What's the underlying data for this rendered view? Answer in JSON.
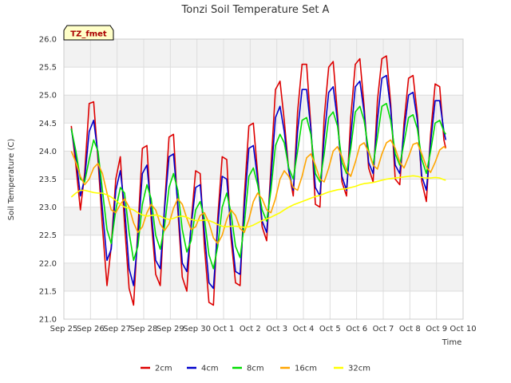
{
  "chart_data": {
    "type": "line",
    "title": "Tonzi Soil Temperature Set A",
    "xlabel": "Time",
    "ylabel": "Soil Temperature (C)",
    "badge": "TZ_fmet",
    "ylim": [
      21.0,
      26.0
    ],
    "yticks": [
      "21.0",
      "21.5",
      "22.0",
      "22.5",
      "23.0",
      "23.5",
      "24.0",
      "24.5",
      "25.0",
      "25.5",
      "26.0"
    ],
    "xlim": [
      0,
      15
    ],
    "xticks": [
      "Sep 25",
      "Sep 26",
      "Sep 27",
      "Sep 28",
      "Sep 29",
      "Sep 30",
      "Oct 1",
      "Oct 2",
      "Oct 3",
      "Oct 4",
      "Oct 5",
      "Oct 6",
      "Oct 7",
      "Oct 8",
      "Oct 9",
      "Oct 10"
    ],
    "x_units": "days since Sep 25 00:00",
    "grid": true,
    "legend_position": "bottom",
    "series": [
      {
        "name": "2cm",
        "color": "#dd0000",
        "x": [
          0.28,
          0.45,
          0.62,
          0.78,
          0.95,
          1.12,
          1.28,
          1.45,
          1.62,
          1.78,
          1.95,
          2.12,
          2.28,
          2.45,
          2.62,
          2.78,
          2.95,
          3.12,
          3.28,
          3.45,
          3.62,
          3.78,
          3.95,
          4.12,
          4.28,
          4.45,
          4.62,
          4.78,
          4.95,
          5.12,
          5.28,
          5.45,
          5.62,
          5.78,
          5.95,
          6.12,
          6.28,
          6.45,
          6.62,
          6.78,
          6.95,
          7.12,
          7.28,
          7.45,
          7.62,
          7.78,
          7.95,
          8.12,
          8.28,
          8.45,
          8.62,
          8.78,
          8.95,
          9.12,
          9.28,
          9.45,
          9.62,
          9.78,
          9.95,
          10.12,
          10.28,
          10.45,
          10.62,
          10.78,
          10.95,
          11.12,
          11.28,
          11.45,
          11.62,
          11.78,
          11.95,
          12.12,
          12.28,
          12.45,
          12.62,
          12.78,
          12.95,
          13.12,
          13.28,
          13.45,
          13.62,
          13.78,
          13.95,
          14.12,
          14.28,
          14.35
        ],
        "values": [
          24.45,
          23.75,
          22.95,
          23.6,
          24.85,
          24.88,
          23.85,
          22.65,
          21.6,
          22.3,
          23.5,
          23.9,
          22.7,
          21.55,
          21.25,
          22.6,
          24.05,
          24.1,
          22.8,
          21.8,
          21.6,
          23.0,
          24.25,
          24.3,
          22.95,
          21.75,
          21.5,
          22.7,
          23.65,
          23.6,
          22.3,
          21.3,
          21.25,
          22.8,
          23.9,
          23.85,
          22.45,
          21.65,
          21.6,
          23.2,
          24.45,
          24.5,
          23.6,
          22.65,
          22.4,
          23.7,
          25.1,
          25.25,
          24.55,
          23.65,
          23.2,
          24.7,
          25.55,
          25.55,
          24.45,
          23.05,
          23.0,
          24.6,
          25.5,
          25.6,
          24.65,
          23.45,
          23.2,
          24.6,
          25.55,
          25.65,
          24.8,
          23.7,
          23.45,
          24.9,
          25.65,
          25.7,
          24.85,
          23.5,
          23.4,
          24.5,
          25.3,
          25.35,
          24.65,
          23.45,
          23.1,
          24.3,
          25.2,
          25.15,
          24.2,
          24.05
        ]
      },
      {
        "name": "4cm",
        "color": "#0000cc",
        "x": [
          0.28,
          0.45,
          0.62,
          0.78,
          0.95,
          1.12,
          1.28,
          1.45,
          1.62,
          1.78,
          1.95,
          2.12,
          2.28,
          2.45,
          2.62,
          2.78,
          2.95,
          3.12,
          3.28,
          3.45,
          3.62,
          3.78,
          3.95,
          4.12,
          4.28,
          4.45,
          4.62,
          4.78,
          4.95,
          5.12,
          5.28,
          5.45,
          5.62,
          5.78,
          5.95,
          6.12,
          6.28,
          6.45,
          6.62,
          6.78,
          6.95,
          7.12,
          7.28,
          7.45,
          7.62,
          7.78,
          7.95,
          8.12,
          8.28,
          8.45,
          8.62,
          8.78,
          8.95,
          9.12,
          9.28,
          9.45,
          9.62,
          9.78,
          9.95,
          10.12,
          10.28,
          10.45,
          10.62,
          10.78,
          10.95,
          11.12,
          11.28,
          11.45,
          11.62,
          11.78,
          11.95,
          12.12,
          12.28,
          12.45,
          12.62,
          12.78,
          12.95,
          13.12,
          13.28,
          13.45,
          13.62,
          13.78,
          13.95,
          14.12,
          14.28,
          14.35
        ],
        "values": [
          24.4,
          23.9,
          23.2,
          23.5,
          24.35,
          24.55,
          23.95,
          22.95,
          22.05,
          22.25,
          23.3,
          23.65,
          23.0,
          21.9,
          21.6,
          22.45,
          23.6,
          23.75,
          22.95,
          22.05,
          21.9,
          22.95,
          23.9,
          23.95,
          23.05,
          22.0,
          21.85,
          22.65,
          23.35,
          23.4,
          22.55,
          21.65,
          21.55,
          22.65,
          23.55,
          23.5,
          22.6,
          21.85,
          21.8,
          23.0,
          24.05,
          24.1,
          23.5,
          22.75,
          22.55,
          23.5,
          24.6,
          24.8,
          24.35,
          23.65,
          23.3,
          24.35,
          25.1,
          25.1,
          24.4,
          23.35,
          23.2,
          24.25,
          25.05,
          25.15,
          24.55,
          23.55,
          23.3,
          24.25,
          25.15,
          25.25,
          24.7,
          23.8,
          23.6,
          24.55,
          25.3,
          25.35,
          24.75,
          23.75,
          23.6,
          24.35,
          25.0,
          25.05,
          24.55,
          23.55,
          23.3,
          24.15,
          24.9,
          24.9,
          24.35,
          24.2
        ]
      },
      {
        "name": "8cm",
        "color": "#00dd00",
        "x": [
          0.28,
          0.45,
          0.62,
          0.78,
          0.95,
          1.12,
          1.28,
          1.45,
          1.62,
          1.78,
          1.95,
          2.12,
          2.28,
          2.45,
          2.62,
          2.78,
          2.95,
          3.12,
          3.28,
          3.45,
          3.62,
          3.78,
          3.95,
          4.12,
          4.28,
          4.45,
          4.62,
          4.78,
          4.95,
          5.12,
          5.28,
          5.45,
          5.62,
          5.78,
          5.95,
          6.12,
          6.28,
          6.45,
          6.62,
          6.78,
          6.95,
          7.12,
          7.28,
          7.45,
          7.62,
          7.78,
          7.95,
          8.12,
          8.28,
          8.45,
          8.62,
          8.78,
          8.95,
          9.12,
          9.28,
          9.45,
          9.62,
          9.78,
          9.95,
          10.12,
          10.28,
          10.45,
          10.62,
          10.78,
          10.95,
          11.12,
          11.28,
          11.45,
          11.62,
          11.78,
          11.95,
          12.12,
          12.28,
          12.45,
          12.62,
          12.78,
          12.95,
          13.12,
          13.28,
          13.45,
          13.62,
          13.78,
          13.95,
          14.12,
          14.28,
          14.35
        ],
        "values": [
          24.4,
          24.0,
          23.5,
          23.45,
          23.85,
          24.2,
          24.0,
          23.3,
          22.6,
          22.35,
          22.95,
          23.35,
          23.25,
          22.55,
          22.05,
          22.3,
          23.05,
          23.4,
          23.15,
          22.5,
          22.25,
          22.65,
          23.35,
          23.6,
          23.3,
          22.6,
          22.2,
          22.4,
          22.95,
          23.1,
          22.8,
          22.15,
          21.9,
          22.3,
          23.0,
          23.25,
          22.9,
          22.3,
          22.1,
          22.7,
          23.55,
          23.7,
          23.4,
          22.95,
          22.75,
          23.3,
          24.1,
          24.3,
          24.15,
          23.7,
          23.5,
          24.0,
          24.55,
          24.6,
          24.3,
          23.6,
          23.45,
          23.95,
          24.6,
          24.7,
          24.45,
          23.8,
          23.6,
          24.05,
          24.7,
          24.8,
          24.55,
          24.0,
          23.75,
          24.25,
          24.8,
          24.85,
          24.55,
          23.95,
          23.75,
          24.15,
          24.6,
          24.65,
          24.4,
          23.85,
          23.6,
          24.0,
          24.5,
          24.55,
          24.35,
          24.3
        ]
      },
      {
        "name": "16cm",
        "color": "#ffa500",
        "x": [
          0.28,
          0.45,
          0.62,
          0.78,
          0.95,
          1.12,
          1.28,
          1.45,
          1.62,
          1.78,
          1.95,
          2.12,
          2.28,
          2.45,
          2.62,
          2.78,
          2.95,
          3.12,
          3.28,
          3.45,
          3.62,
          3.78,
          3.95,
          4.12,
          4.28,
          4.45,
          4.62,
          4.78,
          4.95,
          5.12,
          5.28,
          5.45,
          5.62,
          5.78,
          5.95,
          6.12,
          6.28,
          6.45,
          6.62,
          6.78,
          6.95,
          7.12,
          7.28,
          7.45,
          7.62,
          7.78,
          7.95,
          8.12,
          8.28,
          8.45,
          8.62,
          8.78,
          8.95,
          9.12,
          9.28,
          9.45,
          9.62,
          9.78,
          9.95,
          10.12,
          10.28,
          10.45,
          10.62,
          10.78,
          10.95,
          11.12,
          11.28,
          11.45,
          11.62,
          11.78,
          11.95,
          12.12,
          12.28,
          12.45,
          12.62,
          12.78,
          12.95,
          13.12,
          13.28,
          13.45,
          13.62,
          13.78,
          13.95,
          14.12,
          14.28,
          14.35
        ],
        "values": [
          24.0,
          23.8,
          23.55,
          23.4,
          23.5,
          23.7,
          23.78,
          23.6,
          23.25,
          22.95,
          22.9,
          23.05,
          23.15,
          23.0,
          22.72,
          22.55,
          22.65,
          22.9,
          23.05,
          22.95,
          22.7,
          22.58,
          22.7,
          22.98,
          23.15,
          23.05,
          22.8,
          22.6,
          22.65,
          22.85,
          22.9,
          22.72,
          22.45,
          22.35,
          22.5,
          22.78,
          22.95,
          22.85,
          22.62,
          22.55,
          22.78,
          23.1,
          23.25,
          23.15,
          22.95,
          22.9,
          23.15,
          23.5,
          23.65,
          23.55,
          23.35,
          23.3,
          23.55,
          23.88,
          23.95,
          23.75,
          23.5,
          23.45,
          23.7,
          24.0,
          24.08,
          23.9,
          23.65,
          23.55,
          23.8,
          24.1,
          24.15,
          23.98,
          23.75,
          23.68,
          23.95,
          24.15,
          24.2,
          24.05,
          23.8,
          23.7,
          23.9,
          24.12,
          24.15,
          23.95,
          23.72,
          23.62,
          23.8,
          24.02,
          24.08,
          24.05
        ]
      },
      {
        "name": "32cm",
        "color": "#ffff00",
        "x": [
          0.28,
          0.45,
          0.62,
          0.78,
          0.95,
          1.12,
          1.28,
          1.45,
          1.62,
          1.78,
          1.95,
          2.12,
          2.28,
          2.45,
          2.62,
          2.78,
          2.95,
          3.12,
          3.28,
          3.45,
          3.62,
          3.78,
          3.95,
          4.12,
          4.28,
          4.45,
          4.62,
          4.78,
          4.95,
          5.12,
          5.28,
          5.45,
          5.62,
          5.78,
          5.95,
          6.12,
          6.28,
          6.45,
          6.62,
          6.78,
          6.95,
          7.12,
          7.28,
          7.45,
          7.62,
          7.78,
          7.95,
          8.12,
          8.28,
          8.45,
          8.62,
          8.78,
          8.95,
          9.12,
          9.28,
          9.45,
          9.62,
          9.78,
          9.95,
          10.12,
          10.28,
          10.45,
          10.62,
          10.78,
          10.95,
          11.12,
          11.28,
          11.45,
          11.62,
          11.78,
          11.95,
          12.12,
          12.28,
          12.45,
          12.62,
          12.78,
          12.95,
          13.12,
          13.28,
          13.45,
          13.62,
          13.78,
          13.95,
          14.12,
          14.28,
          14.35
        ],
        "values": [
          23.18,
          23.25,
          23.3,
          23.3,
          23.28,
          23.26,
          23.25,
          23.25,
          23.22,
          23.18,
          23.12,
          23.05,
          23.0,
          22.98,
          22.95,
          22.9,
          22.86,
          22.84,
          22.85,
          22.86,
          22.84,
          22.8,
          22.78,
          22.8,
          22.83,
          22.84,
          22.82,
          22.78,
          22.76,
          22.76,
          22.77,
          22.76,
          22.73,
          22.69,
          22.66,
          22.65,
          22.66,
          22.66,
          22.65,
          22.64,
          22.65,
          22.68,
          22.72,
          22.76,
          22.79,
          22.82,
          22.86,
          22.9,
          22.95,
          23.0,
          23.04,
          23.07,
          23.1,
          23.13,
          23.16,
          23.19,
          23.21,
          23.24,
          23.27,
          23.29,
          23.31,
          23.32,
          23.33,
          23.35,
          23.37,
          23.4,
          23.42,
          23.43,
          23.44,
          23.46,
          23.48,
          23.5,
          23.51,
          23.52,
          23.53,
          23.54,
          23.55,
          23.56,
          23.55,
          23.53,
          23.52,
          23.52,
          23.53,
          23.52,
          23.49,
          23.48
        ]
      }
    ]
  }
}
